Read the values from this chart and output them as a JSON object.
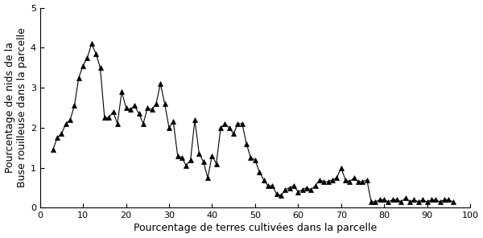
{
  "x": [
    3,
    4,
    5,
    6,
    7,
    8,
    9,
    10,
    11,
    12,
    13,
    14,
    15,
    16,
    17,
    18,
    19,
    20,
    21,
    22,
    23,
    24,
    25,
    26,
    27,
    28,
    29,
    30,
    31,
    32,
    33,
    34,
    35,
    36,
    37,
    38,
    39,
    40,
    41,
    42,
    43,
    44,
    45,
    46,
    47,
    48,
    49,
    50,
    51,
    52,
    53,
    54,
    55,
    56,
    57,
    58,
    59,
    60,
    61,
    62,
    63,
    64,
    65,
    66,
    67,
    68,
    69,
    70,
    71,
    72,
    73,
    74,
    75,
    76,
    77,
    78,
    79,
    80,
    81,
    82,
    83,
    84,
    85,
    86,
    87,
    88,
    89,
    90,
    91,
    92,
    93,
    94,
    95,
    96
  ],
  "y": [
    1.45,
    1.75,
    1.85,
    2.1,
    2.2,
    2.55,
    3.25,
    3.55,
    3.75,
    4.1,
    3.85,
    3.5,
    2.25,
    2.25,
    2.4,
    2.1,
    2.9,
    2.5,
    2.45,
    2.55,
    2.35,
    2.1,
    2.5,
    2.45,
    2.6,
    3.1,
    2.6,
    2.0,
    2.15,
    1.3,
    1.25,
    1.05,
    1.2,
    2.2,
    1.35,
    1.15,
    0.75,
    1.3,
    1.1,
    2.0,
    2.1,
    2.0,
    1.85,
    2.1,
    2.1,
    1.6,
    1.25,
    1.2,
    0.9,
    0.7,
    0.55,
    0.55,
    0.35,
    0.3,
    0.45,
    0.5,
    0.55,
    0.4,
    0.45,
    0.5,
    0.45,
    0.55,
    0.7,
    0.65,
    0.65,
    0.7,
    0.75,
    1.0,
    0.7,
    0.65,
    0.75,
    0.65,
    0.65,
    0.7,
    0.15,
    0.15,
    0.2,
    0.2,
    0.15,
    0.2,
    0.2,
    0.15,
    0.25,
    0.15,
    0.2,
    0.15,
    0.2,
    0.15,
    0.2,
    0.2,
    0.15,
    0.2,
    0.2,
    0.15
  ],
  "xlabel": "Pourcentage de terres cultivées dans la parcelle",
  "ylabel": "Pourcentage de nids de la\nBuse rouilleuse dans la parcelle",
  "xlim": [
    0,
    100
  ],
  "ylim": [
    0,
    5
  ],
  "xticks": [
    0,
    10,
    20,
    30,
    40,
    50,
    60,
    70,
    80,
    90,
    100
  ],
  "yticks": [
    0,
    1,
    2,
    3,
    4,
    5
  ],
  "line_color": "#000000",
  "marker": "^",
  "marker_color": "#000000",
  "marker_size": 4,
  "line_width": 0.8,
  "bg_color": "#ffffff",
  "xlabel_fontsize": 9,
  "ylabel_fontsize": 9,
  "tick_labelsize": 8,
  "figsize": [
    6.0,
    2.96
  ],
  "dpi": 100
}
